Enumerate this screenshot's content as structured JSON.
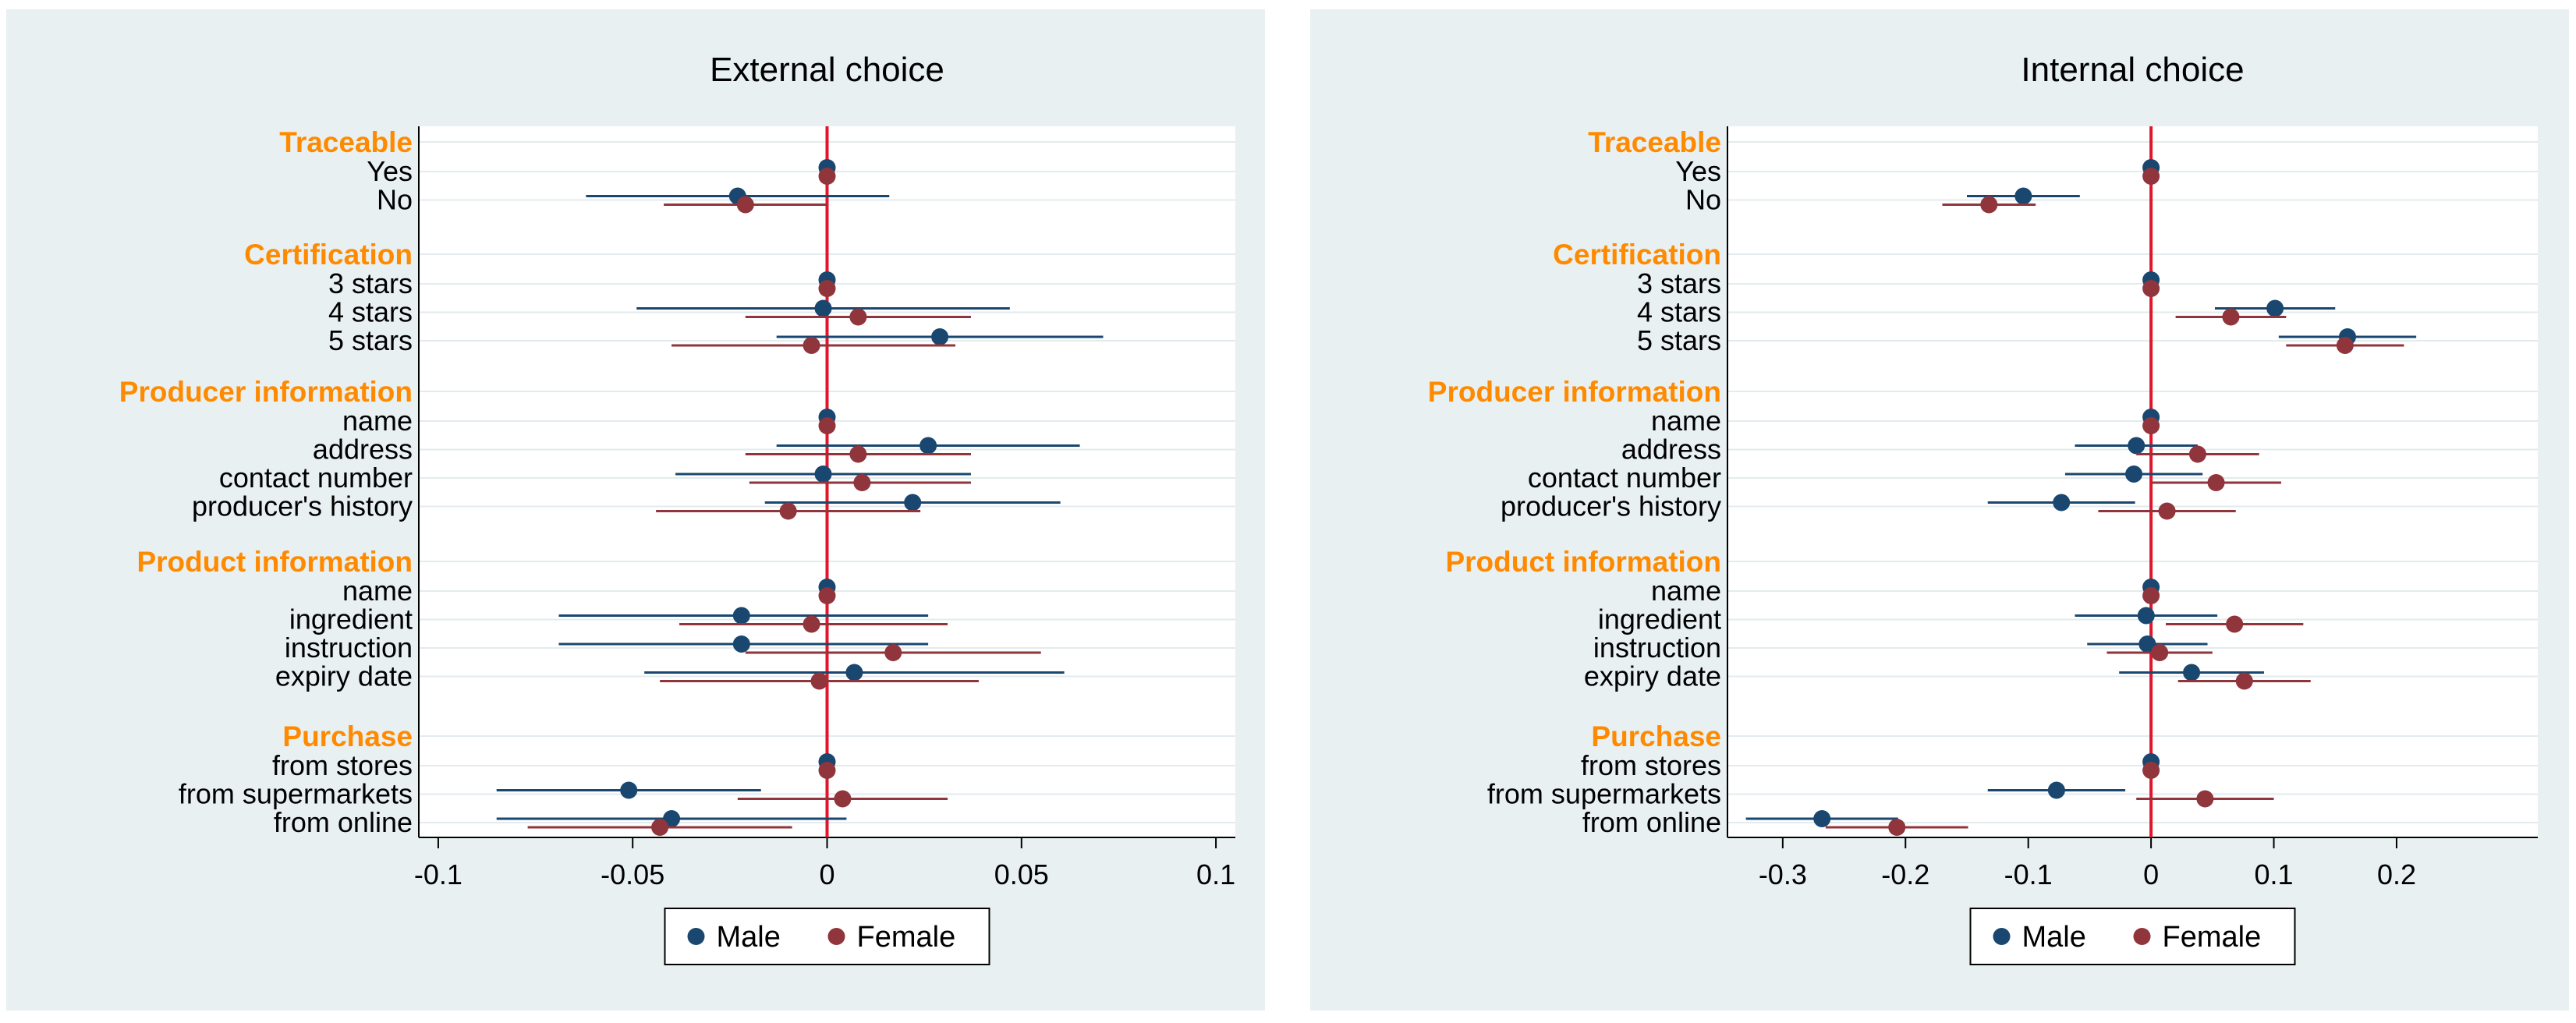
{
  "colors": {
    "male": "#1a476f",
    "female": "#90353b",
    "zero": "#e0162b",
    "group": "#ff8a00"
  },
  "legend": {
    "male": "Male",
    "female": "Female"
  },
  "chart_data": [
    {
      "type": "scatter",
      "title": "External choice",
      "xlim": [
        -0.105,
        0.105
      ],
      "xticks": [
        -0.1,
        -0.05,
        0,
        0.05,
        0.1
      ],
      "xtick_labels": [
        "-0.1",
        "-0.05",
        "0",
        "0.05",
        "0.1"
      ],
      "groups": [
        {
          "label": "Traceable",
          "items": [
            {
              "label": "Yes",
              "male": [
                0,
                0,
                0
              ],
              "female": [
                0,
                0,
                0
              ]
            },
            {
              "label": "No",
              "male": [
                -0.023,
                -0.062,
                0.016
              ],
              "female": [
                -0.021,
                -0.042,
                0
              ]
            }
          ]
        },
        {
          "label": "Certification",
          "items": [
            {
              "label": "3 stars",
              "male": [
                0,
                0,
                0
              ],
              "female": [
                0,
                0,
                0
              ]
            },
            {
              "label": "4 stars",
              "male": [
                -0.001,
                -0.049,
                0.047
              ],
              "female": [
                0.008,
                -0.021,
                0.037
              ]
            },
            {
              "label": "5 stars",
              "male": [
                0.029,
                -0.013,
                0.071
              ],
              "female": [
                -0.004,
                -0.04,
                0.033
              ]
            }
          ]
        },
        {
          "label": "Producer information",
          "items": [
            {
              "label": "name",
              "male": [
                0,
                0,
                0
              ],
              "female": [
                0,
                0,
                0
              ]
            },
            {
              "label": "address",
              "male": [
                0.026,
                -0.013,
                0.065
              ],
              "female": [
                0.008,
                -0.021,
                0.037
              ]
            },
            {
              "label": "contact number",
              "male": [
                -0.001,
                -0.039,
                0.037
              ],
              "female": [
                0.009,
                -0.02,
                0.037
              ]
            },
            {
              "label": "producer's history",
              "male": [
                0.022,
                -0.016,
                0.06
              ],
              "female": [
                -0.01,
                -0.044,
                0.024
              ]
            }
          ]
        },
        {
          "label": "Product information",
          "items": [
            {
              "label": "name",
              "male": [
                0,
                0,
                0
              ],
              "female": [
                0,
                0,
                0
              ]
            },
            {
              "label": "ingredient",
              "male": [
                -0.022,
                -0.069,
                0.026
              ],
              "female": [
                -0.004,
                -0.038,
                0.031
              ]
            },
            {
              "label": "instruction",
              "male": [
                -0.022,
                -0.069,
                0.026
              ],
              "female": [
                0.017,
                -0.021,
                0.055
              ]
            },
            {
              "label": "expiry date",
              "male": [
                0.007,
                -0.047,
                0.061
              ],
              "female": [
                -0.002,
                -0.043,
                0.039
              ]
            }
          ]
        },
        {
          "label": "Purchase",
          "items": [
            {
              "label": "from stores",
              "male": [
                0,
                0,
                0
              ],
              "female": [
                0,
                0,
                0
              ]
            },
            {
              "label": "from supermarkets",
              "male": [
                -0.051,
                -0.085,
                -0.017
              ],
              "female": [
                0.004,
                -0.023,
                0.031
              ]
            },
            {
              "label": "from online",
              "male": [
                -0.04,
                -0.085,
                0.005
              ],
              "female": [
                -0.043,
                -0.077,
                -0.009
              ]
            }
          ]
        }
      ]
    },
    {
      "type": "scatter",
      "title": "Internal choice",
      "xlim": [
        -0.345,
        0.315
      ],
      "xticks": [
        -0.3,
        -0.2,
        -0.1,
        0,
        0.1,
        0.2
      ],
      "xtick_labels": [
        "-0.3",
        "-0.2",
        "-0.1",
        "0",
        "0.1",
        "0.2"
      ],
      "groups": [
        {
          "label": "Traceable",
          "items": [
            {
              "label": "Yes",
              "male": [
                0,
                0,
                0
              ],
              "female": [
                0,
                0,
                0
              ]
            },
            {
              "label": "No",
              "male": [
                -0.104,
                -0.15,
                -0.058
              ],
              "female": [
                -0.132,
                -0.17,
                -0.094
              ]
            }
          ]
        },
        {
          "label": "Certification",
          "items": [
            {
              "label": "3 stars",
              "male": [
                0,
                0,
                0
              ],
              "female": [
                0,
                0,
                0
              ]
            },
            {
              "label": "4 stars",
              "male": [
                0.101,
                0.052,
                0.15
              ],
              "female": [
                0.065,
                0.02,
                0.11
              ]
            },
            {
              "label": "5 stars",
              "male": [
                0.16,
                0.104,
                0.216
              ],
              "female": [
                0.158,
                0.11,
                0.206
              ]
            }
          ]
        },
        {
          "label": "Producer information",
          "items": [
            {
              "label": "name",
              "male": [
                0,
                0,
                0
              ],
              "female": [
                0,
                0,
                0
              ]
            },
            {
              "label": "address",
              "male": [
                -0.012,
                -0.062,
                0.038
              ],
              "female": [
                0.038,
                -0.012,
                0.088
              ]
            },
            {
              "label": "contact number",
              "male": [
                -0.014,
                -0.07,
                0.042
              ],
              "female": [
                0.053,
                0,
                0.106
              ]
            },
            {
              "label": "producer's history",
              "male": [
                -0.073,
                -0.133,
                -0.013
              ],
              "female": [
                0.013,
                -0.043,
                0.069
              ]
            }
          ]
        },
        {
          "label": "Product information",
          "items": [
            {
              "label": "name",
              "male": [
                0,
                0,
                0
              ],
              "female": [
                0,
                0,
                0
              ]
            },
            {
              "label": "ingredient",
              "male": [
                -0.004,
                -0.062,
                0.054
              ],
              "female": [
                0.068,
                0.012,
                0.124
              ]
            },
            {
              "label": "instruction",
              "male": [
                -0.003,
                -0.052,
                0.046
              ],
              "female": [
                0.007,
                -0.036,
                0.05
              ]
            },
            {
              "label": "expiry date",
              "male": [
                0.033,
                -0.026,
                0.092
              ],
              "female": [
                0.076,
                0.022,
                0.13
              ]
            }
          ]
        },
        {
          "label": "Purchase",
          "items": [
            {
              "label": "from stores",
              "male": [
                0,
                0,
                0
              ],
              "female": [
                0,
                0,
                0
              ]
            },
            {
              "label": "from supermarkets",
              "male": [
                -0.077,
                -0.133,
                -0.021
              ],
              "female": [
                0.044,
                -0.012,
                0.1
              ]
            },
            {
              "label": "from online",
              "male": [
                -0.268,
                -0.33,
                -0.206
              ],
              "female": [
                -0.207,
                -0.265,
                -0.149
              ]
            }
          ]
        }
      ]
    }
  ]
}
